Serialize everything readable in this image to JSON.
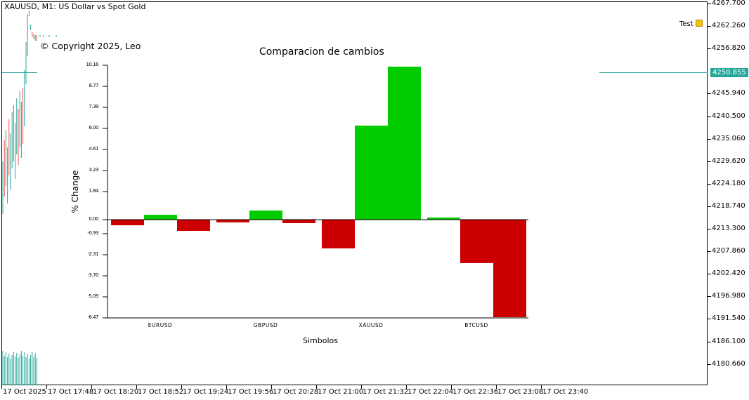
{
  "window": {
    "title": "XAUUSD, M1:  US Dollar vs Spot Gold",
    "copyright": "© Copyright 2025, Leo",
    "object_label": "Test",
    "object_icon": "note-icon"
  },
  "price_axis": {
    "labels": [
      "4267.700",
      "4262.260",
      "4256.820",
      "4250.855",
      "4245.940",
      "4240.500",
      "4235.060",
      "4229.620",
      "4224.180",
      "4218.740",
      "4213.300",
      "4207.860",
      "4202.420",
      "4196.980",
      "4191.540",
      "4186.100",
      "4180.660"
    ],
    "current_price": "4250.855",
    "current_color": "#26a69a"
  },
  "time_axis": {
    "labels": [
      "17 Oct 2025",
      "17 Oct 17:48",
      "17 Oct 18:20",
      "17 Oct 18:52",
      "17 Oct 19:24",
      "17 Oct 19:56",
      "17 Oct 20:28",
      "17 Oct 21:00",
      "17 Oct 21:32",
      "17 Oct 22:04",
      "17 Oct 22:36",
      "17 Oct 23:08",
      "17 Oct 23:40"
    ]
  },
  "colors": {
    "up": "#00cc00",
    "down": "#cc0000",
    "candle_up": "#26a69a",
    "candle_down": "#ef5350"
  },
  "chart_data": {
    "type": "bar",
    "title": "Comparacion de cambios",
    "xlabel": "Simbolos",
    "ylabel": "% Change",
    "ylim": [
      -6.47,
      10.16
    ],
    "yticks": [
      "10.16",
      "8.77",
      "7.39",
      "6.00",
      "4.61",
      "3.23",
      "1.84",
      "0.00",
      "-0.93",
      "-2.31",
      "-3.70",
      "-5.09",
      "-6.47"
    ],
    "categories": [
      "EURUSD",
      "GBPUSD",
      "XAUUSD",
      "BTCUSD"
    ],
    "values": [
      [
        -0.37,
        0.32,
        -0.74
      ],
      [
        -0.18,
        0.6,
        -0.23
      ],
      [
        -1.89,
        6.19,
        10.07
      ],
      [
        0.14,
        -2.86,
        -6.42
      ]
    ]
  }
}
